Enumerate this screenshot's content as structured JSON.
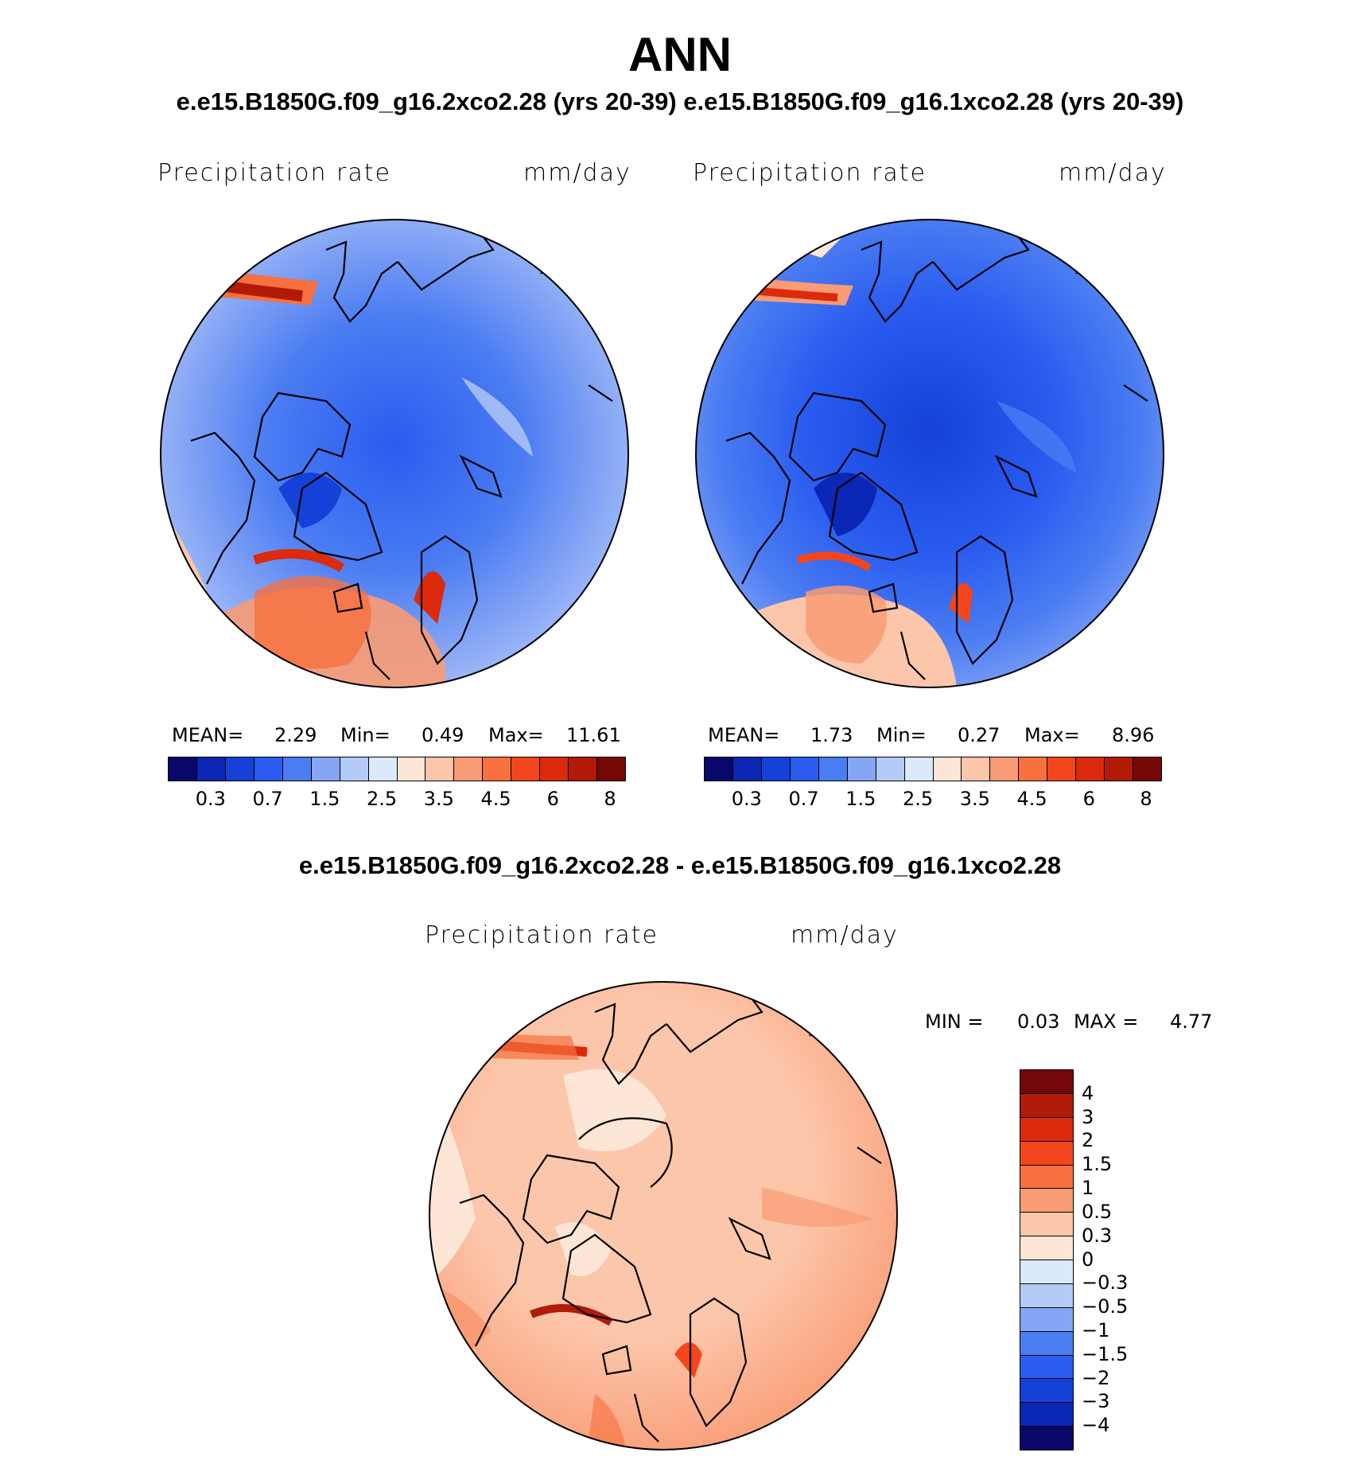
{
  "figure": {
    "title": "ANN",
    "subtitle_top": "e.e15.B1850G.f09_g16.2xco2.28 (yrs 20-39) e.e15.B1850G.f09_g16.1xco2.28 (yrs 20-39)",
    "subtitle_diff": "e.e15.B1850G.f09_g16.2xco2.28 - e.e15.B1850G.f09_g16.1xco2.28"
  },
  "panels": [
    {
      "variable": "Precipitation rate",
      "units": "mm/day",
      "mean_label": "MEAN=",
      "mean": "2.29",
      "min_label": "Min=",
      "min": "0.49",
      "max_label": "Max=",
      "max": "11.61",
      "tick_labels": [
        "0.3",
        "0.7",
        "1.5",
        "2.5",
        "3.5",
        "4.5",
        "6",
        "8"
      ]
    },
    {
      "variable": "Precipitation rate",
      "units": "mm/day",
      "mean_label": "MEAN=",
      "mean": "1.73",
      "min_label": "Min=",
      "min": "0.27",
      "max_label": "Max=",
      "max": "8.96",
      "tick_labels": [
        "0.3",
        "0.7",
        "1.5",
        "2.5",
        "3.5",
        "4.5",
        "6",
        "8"
      ]
    }
  ],
  "diff_panel": {
    "variable": "Precipitation rate",
    "units": "mm/day",
    "min_label": "MIN =",
    "min": "0.03",
    "max_label": "MAX =",
    "max": "4.77",
    "tick_labels": [
      "4",
      "3",
      "2",
      "1.5",
      "1",
      "0.5",
      "0.3",
      "0",
      "−0.3",
      "−0.5",
      "−1",
      "−1.5",
      "−2",
      "−3",
      "−4"
    ]
  },
  "colors": {
    "abs_scale": [
      "#08086b",
      "#0a27b5",
      "#1541d8",
      "#2a5cf0",
      "#4a7cf2",
      "#86a6f5",
      "#b5cbf7",
      "#dae9fb",
      "#fde6d6",
      "#fcc6aa",
      "#f99b74",
      "#f7703e",
      "#f4461d",
      "#db2a0c",
      "#b21a08",
      "#760707"
    ],
    "diff_scale": [
      "#760707",
      "#b21a08",
      "#db2a0c",
      "#f4461d",
      "#f7703e",
      "#f99b74",
      "#fcc6aa",
      "#fde6d6",
      "#dae9fb",
      "#b5cbf7",
      "#86a6f5",
      "#4a7cf2",
      "#2a5cf0",
      "#1541d8",
      "#0a27b5",
      "#08086b"
    ]
  },
  "chart_data": [
    {
      "type": "heatmap",
      "title": "Precipitation rate",
      "units": "mm/day",
      "projection": "north polar stereographic",
      "case": "e.e15.B1850G.f09_g16.2xco2.28 (yrs 20-39)",
      "stats": {
        "mean": 2.29,
        "min": 0.49,
        "max": 11.61
      },
      "contour_levels": [
        0.2,
        0.3,
        0.5,
        0.7,
        1,
        1.5,
        2,
        2.5,
        3,
        3.5,
        4,
        4.5,
        5,
        6,
        7,
        8
      ],
      "colorbar_tick_labels": [
        0.3,
        0.7,
        1.5,
        2.5,
        3.5,
        4.5,
        6,
        8
      ]
    },
    {
      "type": "heatmap",
      "title": "Precipitation rate",
      "units": "mm/day",
      "projection": "north polar stereographic",
      "case": "e.e15.B1850G.f09_g16.1xco2.28 (yrs 20-39)",
      "stats": {
        "mean": 1.73,
        "min": 0.27,
        "max": 8.96
      },
      "contour_levels": [
        0.2,
        0.3,
        0.5,
        0.7,
        1,
        1.5,
        2,
        2.5,
        3,
        3.5,
        4,
        4.5,
        5,
        6,
        7,
        8
      ],
      "colorbar_tick_labels": [
        0.3,
        0.7,
        1.5,
        2.5,
        3.5,
        4.5,
        6,
        8
      ]
    },
    {
      "type": "heatmap",
      "title": "Precipitation rate",
      "units": "mm/day",
      "projection": "north polar stereographic",
      "case": "e.e15.B1850G.f09_g16.2xco2.28 - e.e15.B1850G.f09_g16.1xco2.28",
      "stats": {
        "min": 0.03,
        "max": 4.77
      },
      "colorbar_tick_labels": [
        4,
        3,
        2,
        1.5,
        1,
        0.5,
        0.3,
        0,
        -0.3,
        -0.5,
        -1,
        -1.5,
        -2,
        -3,
        -4
      ]
    }
  ]
}
